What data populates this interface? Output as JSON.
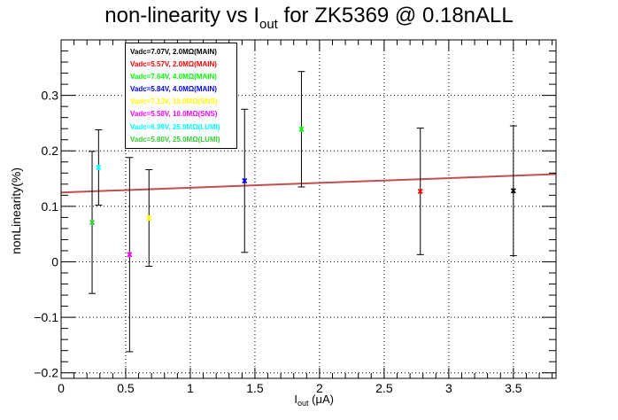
{
  "chart_data": {
    "type": "scatter",
    "title_main": "non-linearity vs I",
    "title_sub": "out",
    "title_rest": " for ZK5369 @ 0.18nALL",
    "xlabel_main": "I",
    "xlabel_sub": "out",
    "xlabel_rest": " (μA)",
    "ylabel": "nonLinearity(%)",
    "xlim": [
      0,
      3.83
    ],
    "ylim": [
      -0.21,
      0.4
    ],
    "xticks": [
      0,
      0.5,
      1,
      1.5,
      2,
      2.5,
      3,
      3.5
    ],
    "xtick_labels": [
      "0",
      "0.5",
      "1",
      "1.5",
      "2",
      "2.5",
      "3",
      "3.5"
    ],
    "yticks": [
      -0.2,
      -0.1,
      0,
      0.1,
      0.2,
      0.3
    ],
    "ytick_labels": [
      "−0.2",
      "−0.1",
      "0",
      "0.1",
      "0.2",
      "0.3"
    ],
    "grid": true,
    "legend_placement": "top-left",
    "series": [
      {
        "name": "Vadc=7.07V, 2.0MΩ(MAIN)",
        "color": "#000000",
        "x": 3.5,
        "y": 0.128,
        "err": 0.117
      },
      {
        "name": "Vadc=5.57V, 2.0MΩ(MAIN)",
        "color": "#ff0000",
        "x": 2.78,
        "y": 0.127,
        "err": 0.114
      },
      {
        "name": "Vadc=7.64V, 4.0MΩ(MAIN)",
        "color": "#00ff00",
        "x": 1.86,
        "y": 0.239,
        "err": 0.104
      },
      {
        "name": "Vadc=5.84V, 4.0MΩ(MAIN)",
        "color": "#0000ff",
        "x": 1.42,
        "y": 0.146,
        "err": 0.129
      },
      {
        "name": "Vadc=7.13V, 10.0MΩ(SNS)",
        "color": "#ffff00",
        "x": 0.68,
        "y": 0.079,
        "err": 0.087
      },
      {
        "name": "Vadc=5.58V, 10.0MΩ(SNS)",
        "color": "#ff00ff",
        "x": 0.53,
        "y": 0.013,
        "err": 0.175
      },
      {
        "name": "Vadc=6.99V, 25.0MΩ(LUMI)",
        "color": "#00ffff",
        "x": 0.29,
        "y": 0.17,
        "err": 0.068
      },
      {
        "name": "Vadc=5.80V, 25.0MΩ(LUMI)",
        "color": "#33cc33",
        "x": 0.24,
        "y": 0.071,
        "err": 0.128
      }
    ],
    "fit_line": {
      "color": "#c0504d",
      "x": [
        0,
        3.83
      ],
      "y": [
        0.125,
        0.158
      ]
    }
  }
}
